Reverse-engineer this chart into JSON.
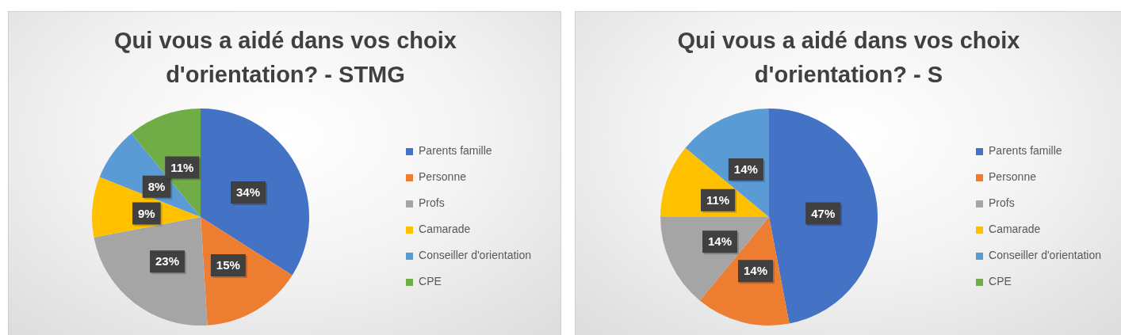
{
  "chart_data": [
    {
      "type": "pie",
      "title": "Qui vous a aidé dans vos choix d'orientation? - STMG",
      "categories": [
        "Parents famille",
        "Personne",
        "Profs",
        "Camarade",
        "Conseiller d'orientation",
        "CPE"
      ],
      "values": [
        34,
        15,
        23,
        9,
        8,
        11
      ],
      "colors": [
        "#4472c4",
        "#ed7d31",
        "#a5a5a5",
        "#ffc000",
        "#5b9bd5",
        "#70ad47"
      ],
      "value_labels": [
        "34%",
        "15%",
        "23%",
        "9%",
        "8%",
        "11%"
      ],
      "legend": "right"
    },
    {
      "type": "pie",
      "title": "Qui vous a aidé dans vos choix d'orientation? - S",
      "categories": [
        "Parents famille",
        "Personne",
        "Profs",
        "Camarade",
        "Conseiller d'orientation",
        "CPE"
      ],
      "values": [
        47,
        14,
        14,
        11,
        14,
        0
      ],
      "colors": [
        "#4472c4",
        "#ed7d31",
        "#a5a5a5",
        "#ffc000",
        "#5b9bd5",
        "#70ad47"
      ],
      "value_labels": [
        "47%",
        "14%",
        "14%",
        "11%",
        "14%",
        null
      ],
      "legend": "right"
    }
  ]
}
